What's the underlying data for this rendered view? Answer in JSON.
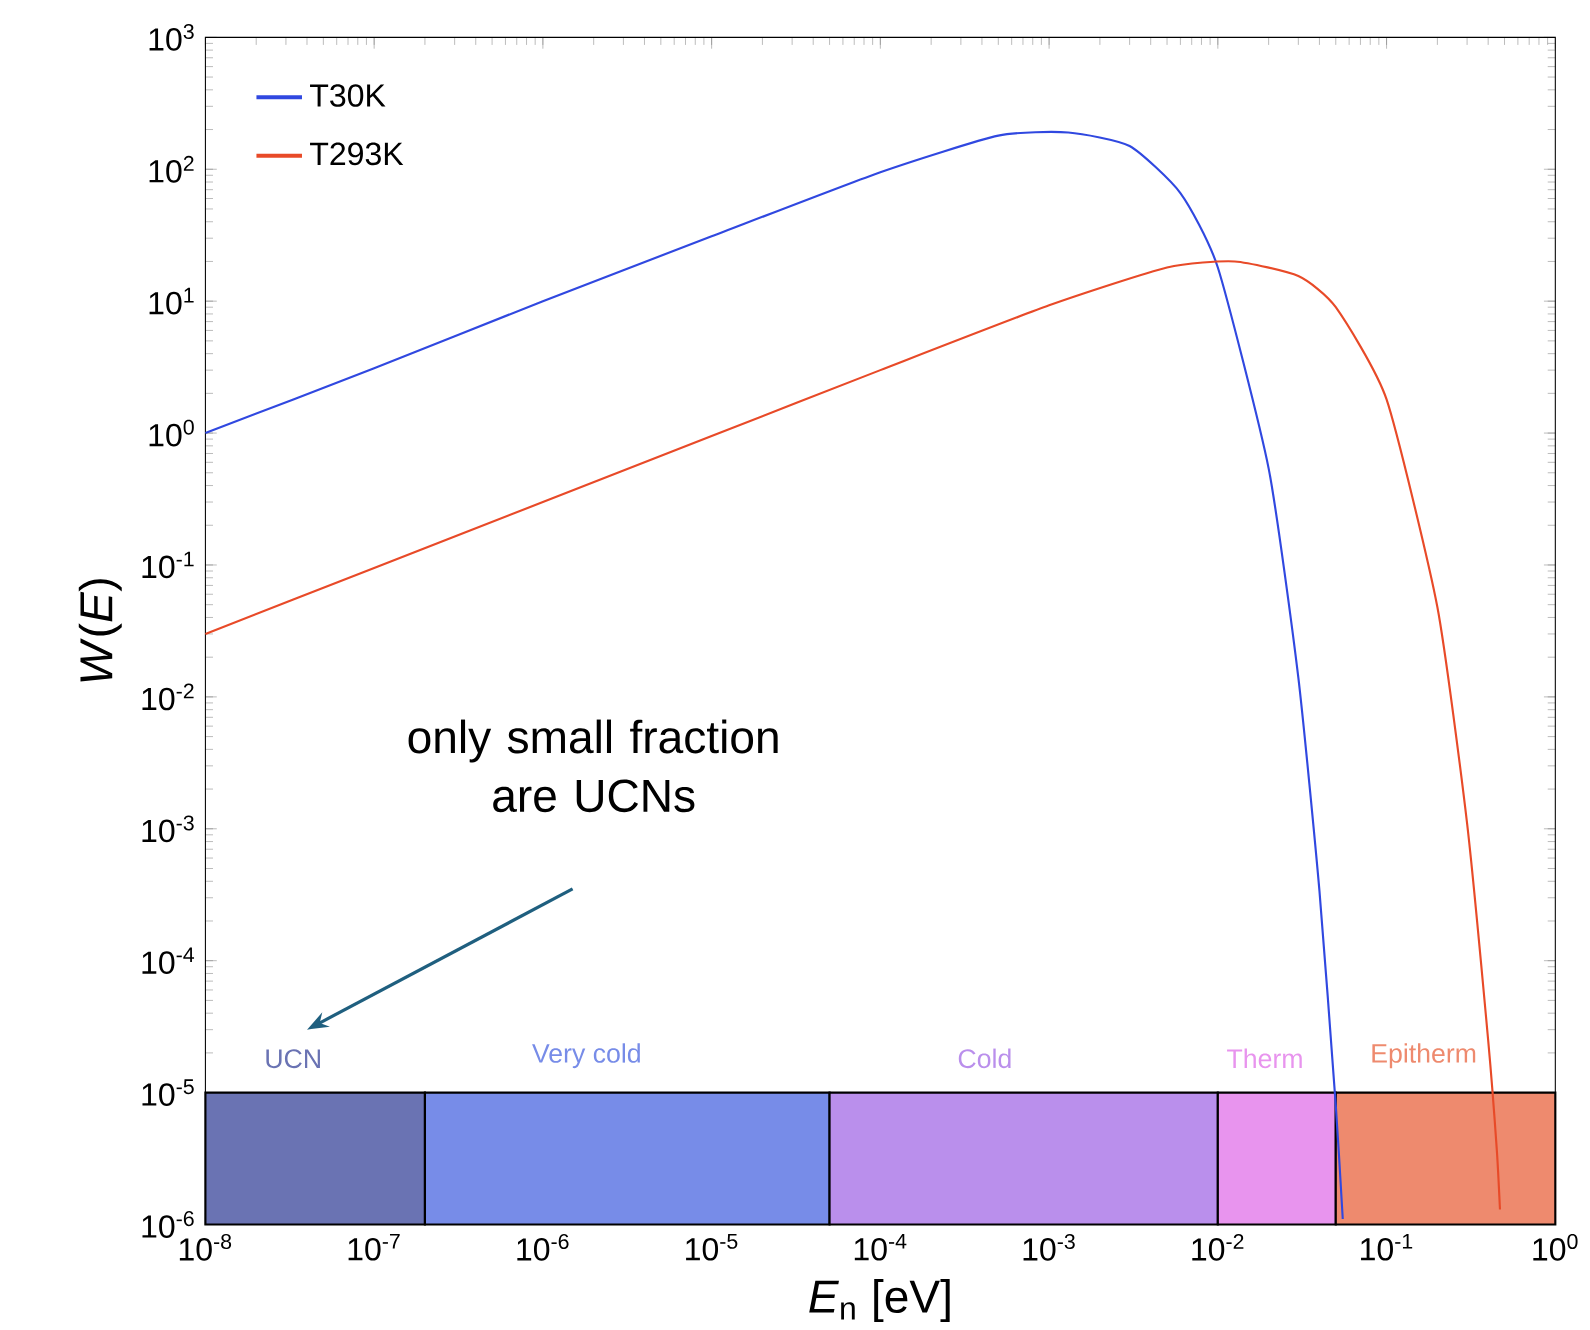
{
  "chart_data": {
    "type": "line",
    "xlabel": "*E*$_{n}$ [eV]",
    "ylabel": "*W*(*E*)",
    "log": "xy",
    "xlim": [
      1e-08,
      1
    ],
    "ylim": [
      1e-06,
      1000
    ],
    "xticks": [
      {
        "value": 1e-08,
        "label": "10$^{-8}$"
      },
      {
        "value": 1e-07,
        "label": "10$^{-7}$"
      },
      {
        "value": 1e-06,
        "label": "10$^{-6}$"
      },
      {
        "value": 1e-05,
        "label": "10$^{-5}$"
      },
      {
        "value": 0.0001,
        "label": "10$^{-4}$"
      },
      {
        "value": 0.001,
        "label": "10$^{-3}$"
      },
      {
        "value": 0.01,
        "label": "10$^{-2}$"
      },
      {
        "value": 0.1,
        "label": "10$^{-1}$"
      },
      {
        "value": 1,
        "label": "10$^{0}$"
      }
    ],
    "yticks": [
      {
        "value": 1e-06,
        "label": "10$^{-6}$"
      },
      {
        "value": 1e-05,
        "label": "10$^{-5}$"
      },
      {
        "value": 0.0001,
        "label": "10$^{-4}$"
      },
      {
        "value": 0.001,
        "label": "10$^{-3}$"
      },
      {
        "value": 0.01,
        "label": "10$^{-2}$"
      },
      {
        "value": 0.1,
        "label": "10$^{-1}$"
      },
      {
        "value": 1,
        "label": "10$^{0}$"
      },
      {
        "value": 10,
        "label": "10$^{1}$"
      },
      {
        "value": 100,
        "label": "10$^{2}$"
      },
      {
        "value": 1000,
        "label": "10$^{3}$"
      }
    ],
    "legend": "top left",
    "marker": "none",
    "line_style": "solid",
    "series": [
      {
        "name": "T30K",
        "color": "#3048e0",
        "x": [
          1e-08,
          1e-07,
          1e-06,
          1e-05,
          0.0001,
          0.0005,
          0.0013,
          0.003,
          0.006,
          0.01,
          0.02,
          0.03,
          0.04,
          0.05,
          0.055
        ],
        "values": [
          1.0,
          3.1,
          10,
          31,
          95,
          180,
          190,
          150,
          66,
          18,
          0.54,
          0.014,
          0.00034,
          8e-06,
          1.1e-06
        ]
      },
      {
        "name": "T293K",
        "color": "#e84a28",
        "x": [
          1e-08,
          1e-07,
          1e-06,
          1e-05,
          0.0001,
          0.001,
          0.005,
          0.0126,
          0.03,
          0.05,
          0.1,
          0.2,
          0.3,
          0.4,
          0.45,
          0.47
        ],
        "values": [
          0.03,
          0.095,
          0.3,
          0.95,
          3,
          9.3,
          18,
          20,
          15.5,
          9,
          1.8,
          0.048,
          0.0011,
          2.5e-05,
          3.7e-06,
          1.3e-06
        ]
      }
    ],
    "bands": [
      {
        "axis": "x",
        "from": 1e-08,
        "to": 2e-07,
        "label": "UCN",
        "color": "#6a73b3"
      },
      {
        "axis": "x",
        "from": 2e-07,
        "to": 5e-05,
        "label": "Very cold",
        "color": "#778ce8"
      },
      {
        "axis": "x",
        "from": 5e-05,
        "to": 0.01,
        "label": "Cold",
        "color": "#ba8fec"
      },
      {
        "axis": "x",
        "from": 0.01,
        "to": 0.05,
        "label": "Therm",
        "color": "#e894ee"
      },
      {
        "axis": "x",
        "from": 0.05,
        "to": 1,
        "label": "Epitherm",
        "color": "#ee8a6e"
      }
    ],
    "annotations": [
      "only small fraction are UCNs"
    ]
  }
}
